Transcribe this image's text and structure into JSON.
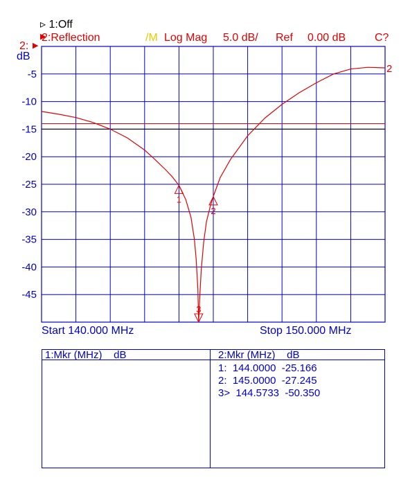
{
  "header": {
    "line1": "▹ 1:Off",
    "ch2_label": "2:Reflection",
    "format_marker": "/M",
    "format": "Log Mag",
    "scale": "5.0 dB/",
    "ref": "Ref",
    "ref_value": "0.00 dB",
    "cal": "C?",
    "ref_pos_label": "2:",
    "unit": "dB"
  },
  "footer": {
    "start": "Start 140.000 MHz",
    "stop": "Stop 150.000 MHz"
  },
  "table": {
    "left_header": "1:Mkr (MHz)    dB",
    "right_header": "2:Mkr (MHz)    dB",
    "rows": [
      "1:  144.0000  -25.166",
      "2:  145.0000  -27.245",
      "3>  144.5733  -50.350"
    ]
  },
  "colors": {
    "grid": "#0000cc",
    "trace": "#e00000",
    "axis_text": "#0000cc",
    "ref_line_red": "#e00000",
    "ref_line_black": "#000000"
  },
  "chart_data": {
    "type": "line",
    "xlim": [
      140,
      150
    ],
    "ylim": [
      -50,
      0
    ],
    "yticks": [
      "-5",
      "-10",
      "-15",
      "-20",
      "-25",
      "-30",
      "-35",
      "-40",
      "-45"
    ],
    "series": [
      {
        "x": [
          140,
          140.5,
          141,
          141.5,
          142,
          142.5,
          143,
          143.3,
          143.6,
          143.8,
          144,
          144.2,
          144.35,
          144.45,
          144.5,
          144.55,
          144.5733,
          144.6,
          144.65,
          144.72,
          144.8,
          144.9,
          145,
          145.2,
          145.5,
          146,
          146.5,
          147,
          147.5,
          148,
          148.5,
          149,
          149.5,
          150
        ],
        "y": [
          -11.8,
          -12.3,
          -12.9,
          -13.8,
          -15.0,
          -16.6,
          -18.8,
          -20.5,
          -22.3,
          -23.6,
          -25.2,
          -27.8,
          -31.0,
          -35.0,
          -38.5,
          -44.0,
          -50.35,
          -46.0,
          -40.5,
          -35.5,
          -31.8,
          -29.3,
          -27.2,
          -23.8,
          -20.5,
          -16.2,
          -13.0,
          -10.5,
          -8.4,
          -6.6,
          -5.0,
          -4.1,
          -3.8,
          -3.9
        ]
      }
    ],
    "reference_lines": [
      -14.0,
      -15.0
    ],
    "markers": [
      {
        "label": "1",
        "x": 144.0,
        "y": -25.166
      },
      {
        "label": "2",
        "x": 145.0,
        "y": -27.245
      },
      {
        "label": "3",
        "x": 144.5733,
        "y": -50.35
      }
    ],
    "trace_end_label": "2"
  }
}
